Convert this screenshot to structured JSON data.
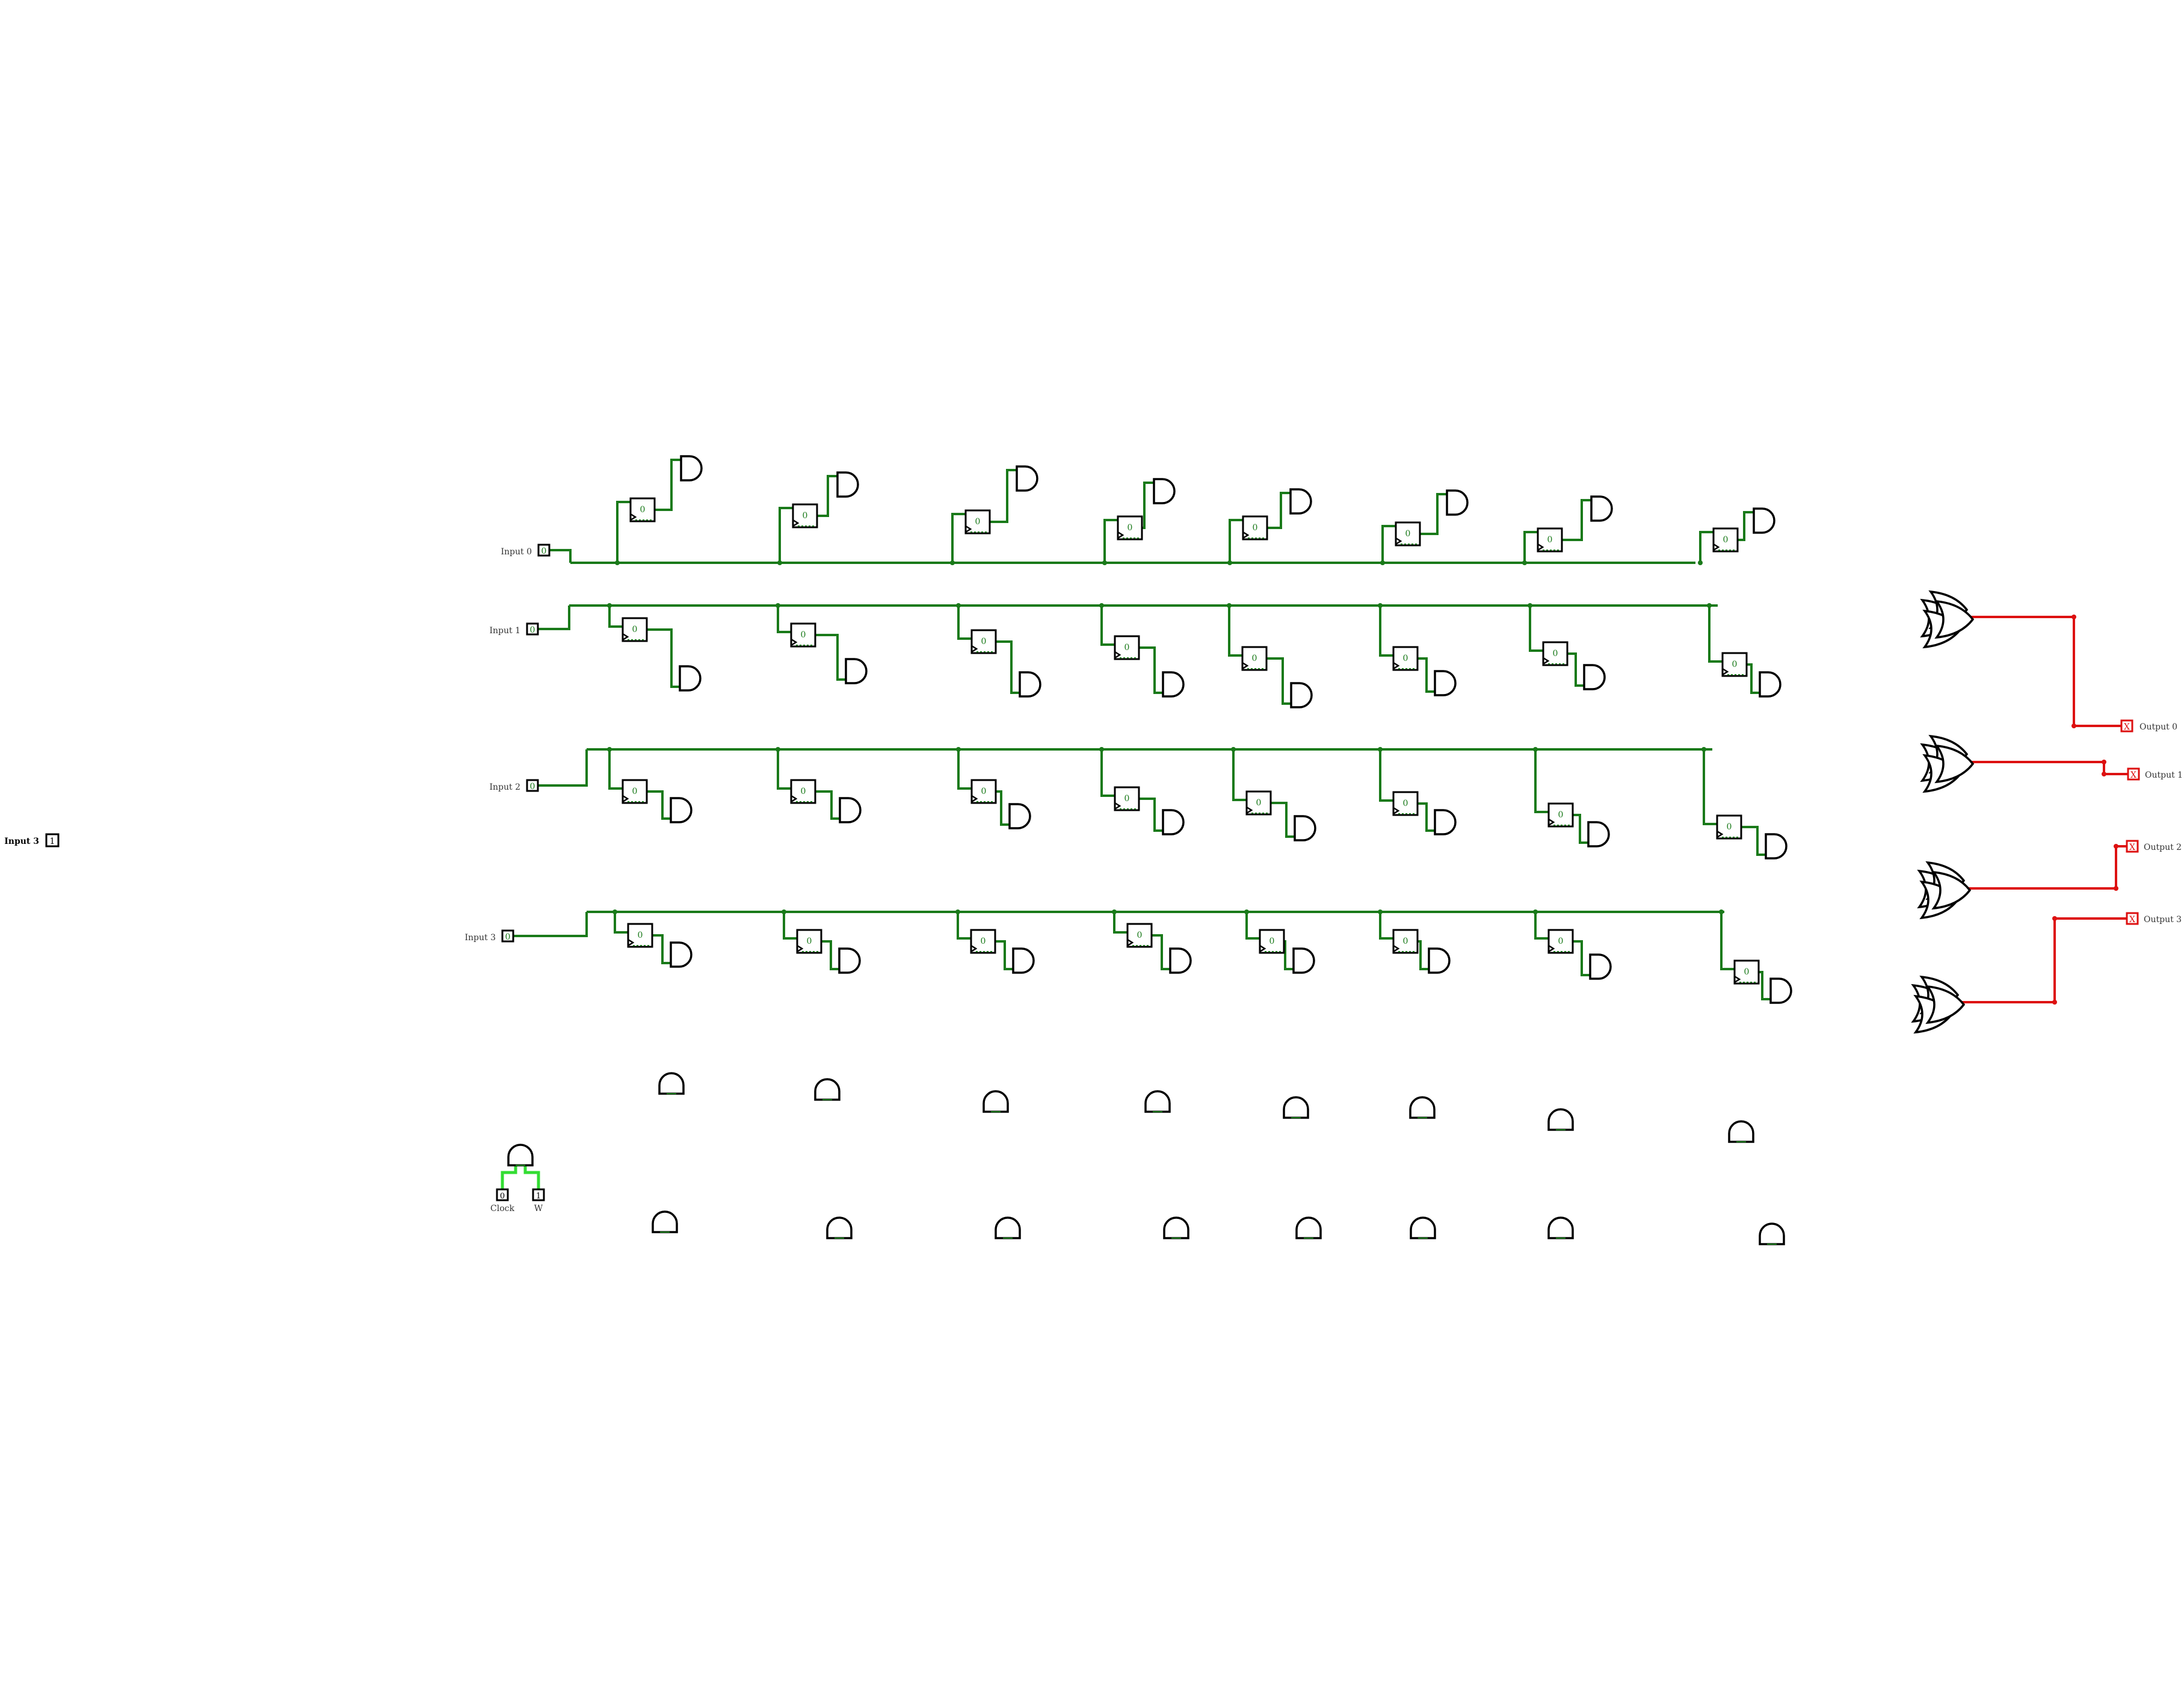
{
  "colors": {
    "wire_on": "#1a7a1a",
    "wire_bright": "#33dd33",
    "wire_error": "#dd1111",
    "component": "#000000",
    "background": "#ffffff"
  },
  "inputs": [
    {
      "label": "Input 0",
      "value": "0"
    },
    {
      "label": "Input 1",
      "value": "0"
    },
    {
      "label": "Input 2",
      "value": "0"
    },
    {
      "label": "Input 3",
      "value": "0"
    }
  ],
  "stray_input": {
    "label": "Input 3",
    "value": "1"
  },
  "control_inputs": [
    {
      "label": "Clock",
      "value": "0"
    },
    {
      "label": "W",
      "value": "1"
    }
  ],
  "register_value": "0",
  "outputs": [
    {
      "label": "Output 0",
      "value": "X"
    },
    {
      "label": "Output 1",
      "value": "X"
    },
    {
      "label": "Output 2",
      "value": "X"
    },
    {
      "label": "Output 3",
      "value": "X"
    }
  ]
}
